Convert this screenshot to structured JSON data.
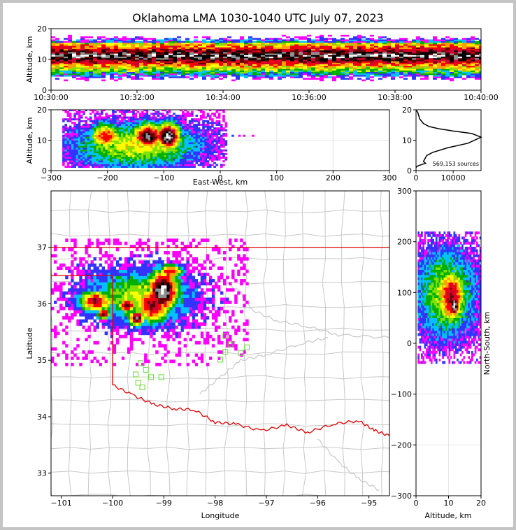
{
  "title": "Oklahoma LMA 1030-1040 UTC July 07, 2023",
  "colors": {
    "density_scale": [
      "#ff00ff",
      "#3333ff",
      "#00c0ff",
      "#00b000",
      "#80e000",
      "#ffff00",
      "#ffa000",
      "#ff0000",
      "#d00030",
      "#600000",
      "#000000",
      "#909090",
      "#ffffff"
    ],
    "state_border": "#dd0000",
    "county_border": "#c8c8c8",
    "station_marker": "#66dd33"
  },
  "chart_data": [
    {
      "panel": "altitude-time",
      "type": "heatmap",
      "ylabel": "Altitude, km",
      "xlabel": "",
      "xlim": [
        "10:30:00",
        "10:40:00"
      ],
      "xticks": [
        "10:30:00",
        "10:32:00",
        "10:34:00",
        "10:36:00",
        "10:38:00",
        "10:40:00"
      ],
      "ylim": [
        0,
        20
      ],
      "yticks": [
        0,
        10,
        20
      ],
      "source_altitude_band_km": [
        1,
        19
      ],
      "peak_altitude_km": 11
    },
    {
      "panel": "east-west-altitude",
      "type": "heatmap",
      "xlabel": "East-West, km",
      "ylabel": "Altitude, km",
      "xlim": [
        -300,
        300
      ],
      "xticks": [
        -300,
        -200,
        -100,
        0,
        100,
        200,
        300
      ],
      "ylim": [
        0,
        20
      ],
      "yticks": [
        0,
        10,
        20
      ],
      "cells": [
        {
          "x": -205,
          "z": 11,
          "level": 8
        },
        {
          "x": -130,
          "z": 11,
          "level": 11
        },
        {
          "x": -95,
          "z": 11,
          "level": 12
        }
      ]
    },
    {
      "panel": "altitude-histogram",
      "type": "line",
      "xlabel": "",
      "ylabel": "",
      "xlim": [
        0,
        17500
      ],
      "xticks": [
        0,
        10000
      ],
      "ylim": [
        0,
        20
      ],
      "yticks": [
        0,
        10,
        20
      ],
      "annotation": "569,153 sources",
      "x": [
        0,
        400,
        1500,
        2600,
        2000,
        2900,
        4500,
        8500,
        14000,
        17500,
        15000,
        10000,
        6000,
        3500,
        2000,
        1000,
        500,
        0
      ],
      "y": [
        1,
        1.5,
        2,
        2.4,
        3,
        5,
        6,
        7.5,
        9,
        11,
        12.2,
        13,
        13.8,
        14.5,
        15.5,
        17,
        19,
        20
      ]
    },
    {
      "panel": "plan-view",
      "type": "heatmap",
      "xlabel": "Longitude",
      "ylabel": "Latitude",
      "xlim": [
        -101.2,
        -94.6
      ],
      "xticks": [
        -101,
        -100,
        -99,
        -98,
        -97,
        -96,
        -95
      ],
      "ylim": [
        32.6,
        38.0
      ],
      "yticks": [
        33,
        34,
        35,
        36,
        37
      ],
      "stations": [
        {
          "lon": -99.45,
          "lat": 34.95
        },
        {
          "lon": -99.55,
          "lat": 34.75
        },
        {
          "lon": -99.35,
          "lat": 34.83
        },
        {
          "lon": -99.25,
          "lat": 34.7
        },
        {
          "lon": -99.5,
          "lat": 34.6
        },
        {
          "lon": -99.42,
          "lat": 34.52
        },
        {
          "lon": -99.05,
          "lat": 34.7
        },
        {
          "lon": -97.9,
          "lat": 35.01
        },
        {
          "lon": -97.8,
          "lat": 35.15
        },
        {
          "lon": -97.7,
          "lat": 35.28
        },
        {
          "lon": -97.5,
          "lat": 35.13
        },
        {
          "lon": -97.38,
          "lat": 35.23
        },
        {
          "lon": -97.8,
          "lat": 35.43
        }
      ]
    },
    {
      "panel": "altitude-north-south",
      "type": "heatmap",
      "xlabel": "Altitude, km",
      "ylabel": "North-South, km",
      "xlim": [
        0,
        20
      ],
      "xticks": [
        0,
        10,
        20
      ],
      "ylim": [
        -300,
        300
      ],
      "yticks": [
        -300,
        -200,
        -100,
        0,
        100,
        200,
        300
      ]
    }
  ]
}
